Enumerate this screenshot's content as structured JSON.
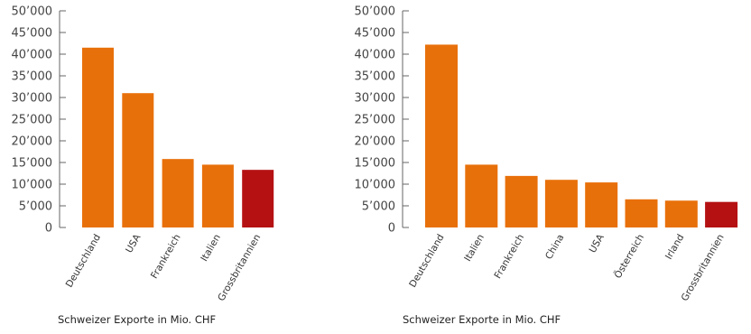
{
  "colors": {
    "bar": "#e8700a",
    "highlight": "#b51113",
    "axis": "#666666",
    "text": "#333333"
  },
  "chart_data": [
    {
      "type": "bar",
      "caption": "Schweizer Exporte in Mio. CHF",
      "categories": [
        "Deutschland",
        "USA",
        "Frankreich",
        "Italien",
        "Grossbritannien"
      ],
      "values": [
        41500,
        31000,
        15800,
        14500,
        13300
      ],
      "highlight": "Grossbritannien",
      "ylim": [
        0,
        50000
      ],
      "yticks": [
        0,
        5000,
        10000,
        15000,
        20000,
        25000,
        30000,
        35000,
        40000,
        45000,
        50000
      ],
      "ytick_labels": [
        "0",
        "5’000",
        "10’000",
        "15’000",
        "20’000",
        "25’000",
        "30’000",
        "35’000",
        "40’000",
        "45’000",
        "50’000"
      ],
      "grid": false
    },
    {
      "type": "bar",
      "caption": "Schweizer Exporte in Mio. CHF",
      "categories": [
        "Deutschland",
        "Italien",
        "Frankreich",
        "China",
        "USA",
        "Österreich",
        "Irland",
        "Grossbritannien"
      ],
      "values": [
        42200,
        14500,
        11900,
        11000,
        10400,
        6500,
        6200,
        5900
      ],
      "highlight": "Grossbritannien",
      "ylim": [
        0,
        50000
      ],
      "yticks": [
        0,
        5000,
        10000,
        15000,
        20000,
        25000,
        30000,
        35000,
        40000,
        45000,
        50000
      ],
      "ytick_labels": [
        "0",
        "5’000",
        "10’000",
        "15’000",
        "20’000",
        "25’000",
        "30’000",
        "35’000",
        "40’000",
        "45’000",
        "50’000"
      ],
      "grid": false
    }
  ]
}
